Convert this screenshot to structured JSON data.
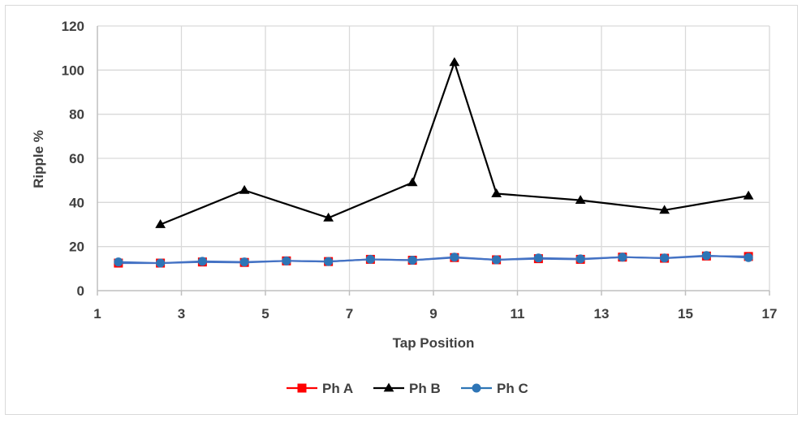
{
  "chart_data": {
    "type": "scatter",
    "title": "",
    "xlabel": "Tap Position",
    "ylabel": "Ripple %",
    "xlim": [
      1,
      17
    ],
    "ylim": [
      0,
      120
    ],
    "x_ticks": [
      1,
      3,
      5,
      7,
      9,
      11,
      13,
      15,
      17
    ],
    "y_ticks": [
      0,
      20,
      40,
      60,
      80,
      100,
      120
    ],
    "grid": true,
    "legend_position": "bottom",
    "series": [
      {
        "name": "Ph A",
        "color": "#ff0000",
        "marker": "square",
        "line_color": "#4472c4",
        "x": [
          1.5,
          2.5,
          3.5,
          4.5,
          5.5,
          6.5,
          7.5,
          8.5,
          9.5,
          10.5,
          11.5,
          12.5,
          13.5,
          14.5,
          15.5,
          16.5
        ],
        "y": [
          12.5,
          12.5,
          13,
          12.8,
          13.5,
          13.2,
          14.2,
          13.8,
          15,
          14,
          14.5,
          14.2,
          15.2,
          14.7,
          15.7,
          15.5
        ]
      },
      {
        "name": "Ph B",
        "color": "#000000",
        "marker": "triangle",
        "line_color": "#000000",
        "x": [
          2.5,
          4.5,
          6.5,
          8.5,
          9.5,
          10.5,
          12.5,
          14.5,
          16.5
        ],
        "y": [
          30,
          45.5,
          33,
          49,
          103.5,
          44,
          41,
          36.5,
          43
        ]
      },
      {
        "name": "Ph C",
        "color": "#2e75b6",
        "marker": "circle",
        "line_color": "#4472c4",
        "x": [
          1.5,
          2.5,
          3.5,
          4.5,
          5.5,
          6.5,
          7.5,
          8.5,
          9.5,
          10.5,
          11.5,
          12.5,
          13.5,
          14.5,
          15.5,
          16.5
        ],
        "y": [
          13,
          12.5,
          13.3,
          13,
          13.5,
          13.2,
          14.2,
          13.8,
          15.2,
          14,
          14.8,
          14.4,
          15.2,
          14.8,
          15.9,
          15
        ]
      }
    ]
  }
}
